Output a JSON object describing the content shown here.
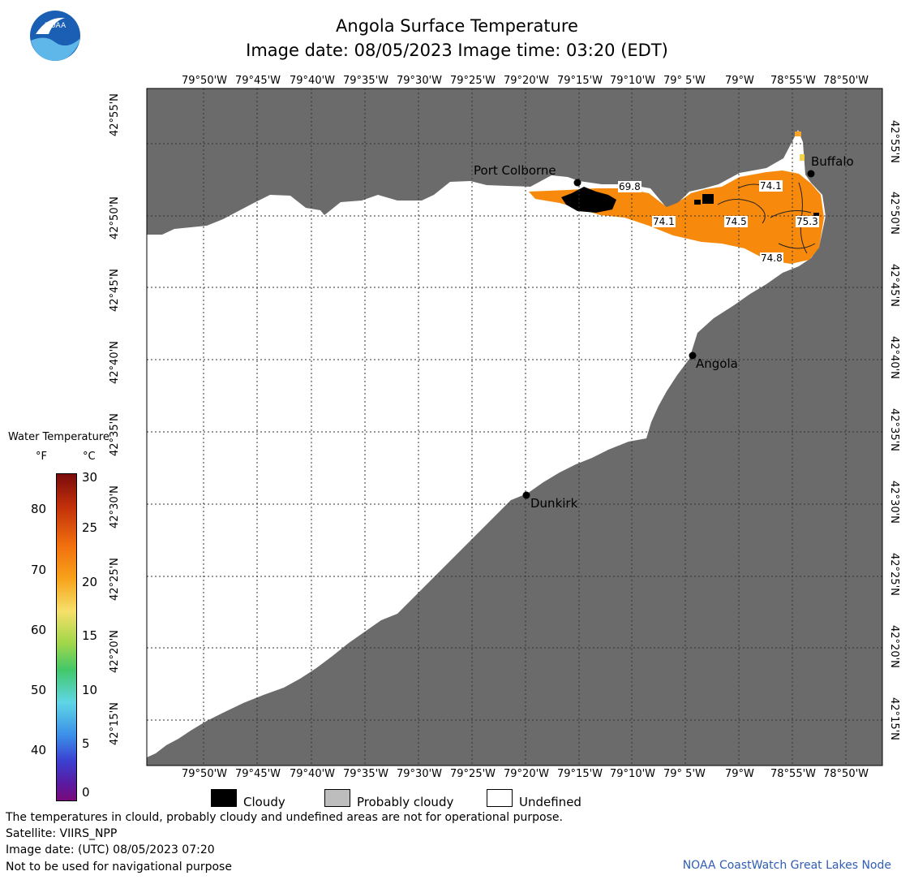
{
  "header": {
    "title": "Angola Surface Temperature",
    "subtitle": "Image date: 08/05/2023     Image time: 03:20 (EDT)",
    "logo_text": "NOAA"
  },
  "map": {
    "lon_labels": [
      "79°50'W",
      "79°45'W",
      "79°40'W",
      "79°35'W",
      "79°30'W",
      "79°25'W",
      "79°20'W",
      "79°15'W",
      "79°10'W",
      "79° 5'W",
      "79°W",
      "78°55'W",
      "78°50'W"
    ],
    "lat_labels": [
      "42°55'N",
      "42°50'N",
      "42°45'N",
      "42°40'N",
      "42°35'N",
      "42°30'N",
      "42°25'N",
      "42°20'N",
      "42°15'N"
    ],
    "cities": [
      {
        "name": "Port Colborne"
      },
      {
        "name": "Buffalo"
      },
      {
        "name": "Angola"
      },
      {
        "name": "Dunkirk"
      }
    ],
    "temperature_labels": [
      "69.8",
      "74.1",
      "74.1",
      "74.5",
      "75.3",
      "74.8"
    ],
    "colors": {
      "land": "#6b6b6b",
      "water_undefined": "#ffffff",
      "warm_water": "#f7890c",
      "cloud": "#000000",
      "grid": "#333333"
    }
  },
  "color_scale": {
    "title": "Water Temperature",
    "unit_f": "°F",
    "unit_c": "°C",
    "fahrenheit_ticks": [
      "80",
      "70",
      "60",
      "50",
      "40"
    ],
    "celsius_ticks": [
      "30",
      "25",
      "20",
      "15",
      "10",
      "5",
      "0"
    ]
  },
  "legend": {
    "cloudy": "Cloudy",
    "probably_cloudy": "Probably cloudy",
    "undefined": "Undefined"
  },
  "footer": {
    "line1": "The temperatures in clould, probably cloudy and undefined areas are not for operational purpose.",
    "line2": "Satellite: VIIRS_NPP",
    "line3": "Image date: (UTC) 08/05/2023  07:20",
    "line4": "Not to be used for navigational purpose",
    "credit": "NOAA CoastWatch Great Lakes Node"
  }
}
